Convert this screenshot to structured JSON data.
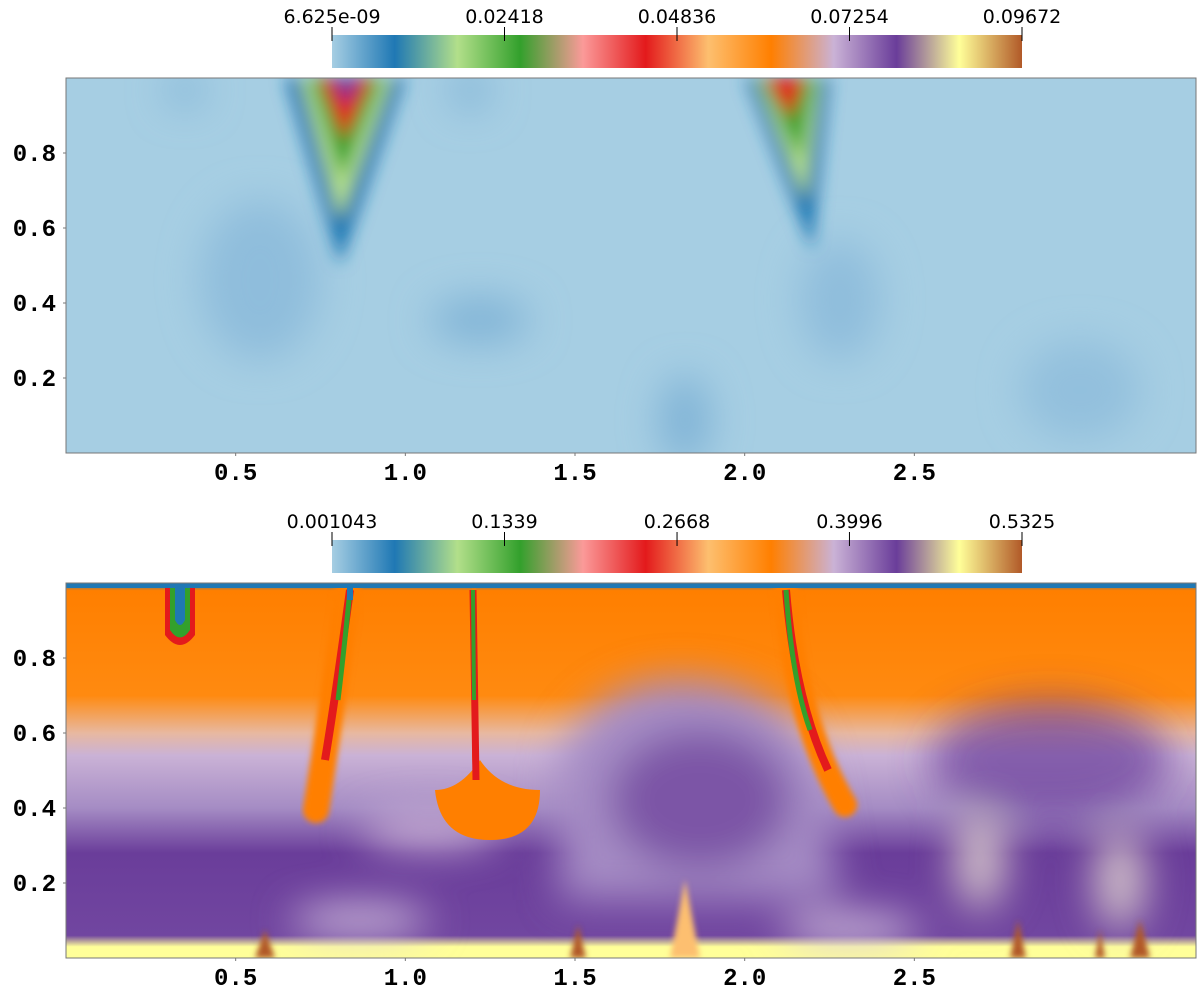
{
  "chart_data": [
    {
      "type": "heatmap",
      "colormap": [
        "#a6cee3",
        "#1f78b4",
        "#b2df8a",
        "#33a02c",
        "#fb9a99",
        "#e31a1c",
        "#fdbf6f",
        "#ff7f00",
        "#cab2d6",
        "#6a3d9a",
        "#ffff99",
        "#b15928"
      ],
      "clim": [
        6.625e-09,
        0.09672
      ],
      "cticks": [
        {
          "value": 6.625e-09,
          "label": "6.625e-09"
        },
        0.02418,
        0.04836,
        0.07254,
        0.09672
      ],
      "xlim": [
        0,
        3.33
      ],
      "ylim": [
        0,
        1
      ],
      "xticks": [
        0.5,
        {
          "value": 1,
          "label": "1.0"
        },
        1.5,
        {
          "value": 2,
          "label": "2.0"
        },
        2.5
      ],
      "yticks": [
        0.2,
        0.4,
        0.6,
        0.8
      ]
    },
    {
      "type": "heatmap",
      "colormap": [
        "#a6cee3",
        "#1f78b4",
        "#b2df8a",
        "#33a02c",
        "#fb9a99",
        "#e31a1c",
        "#fdbf6f",
        "#ff7f00",
        "#cab2d6",
        "#6a3d9a",
        "#ffff99",
        "#b15928"
      ],
      "clim": [
        0.001043,
        0.5325
      ],
      "cticks": [
        0.001043,
        0.1339,
        0.2668,
        0.3996,
        0.5325
      ],
      "xlim": [
        0,
        3.33
      ],
      "ylim": [
        0,
        1
      ],
      "xticks": [
        0.5,
        {
          "value": 1,
          "label": "1.0"
        },
        1.5,
        {
          "value": 2,
          "label": "2.0"
        },
        2.5
      ],
      "yticks": [
        0.2,
        0.4,
        0.6,
        0.8
      ]
    }
  ]
}
